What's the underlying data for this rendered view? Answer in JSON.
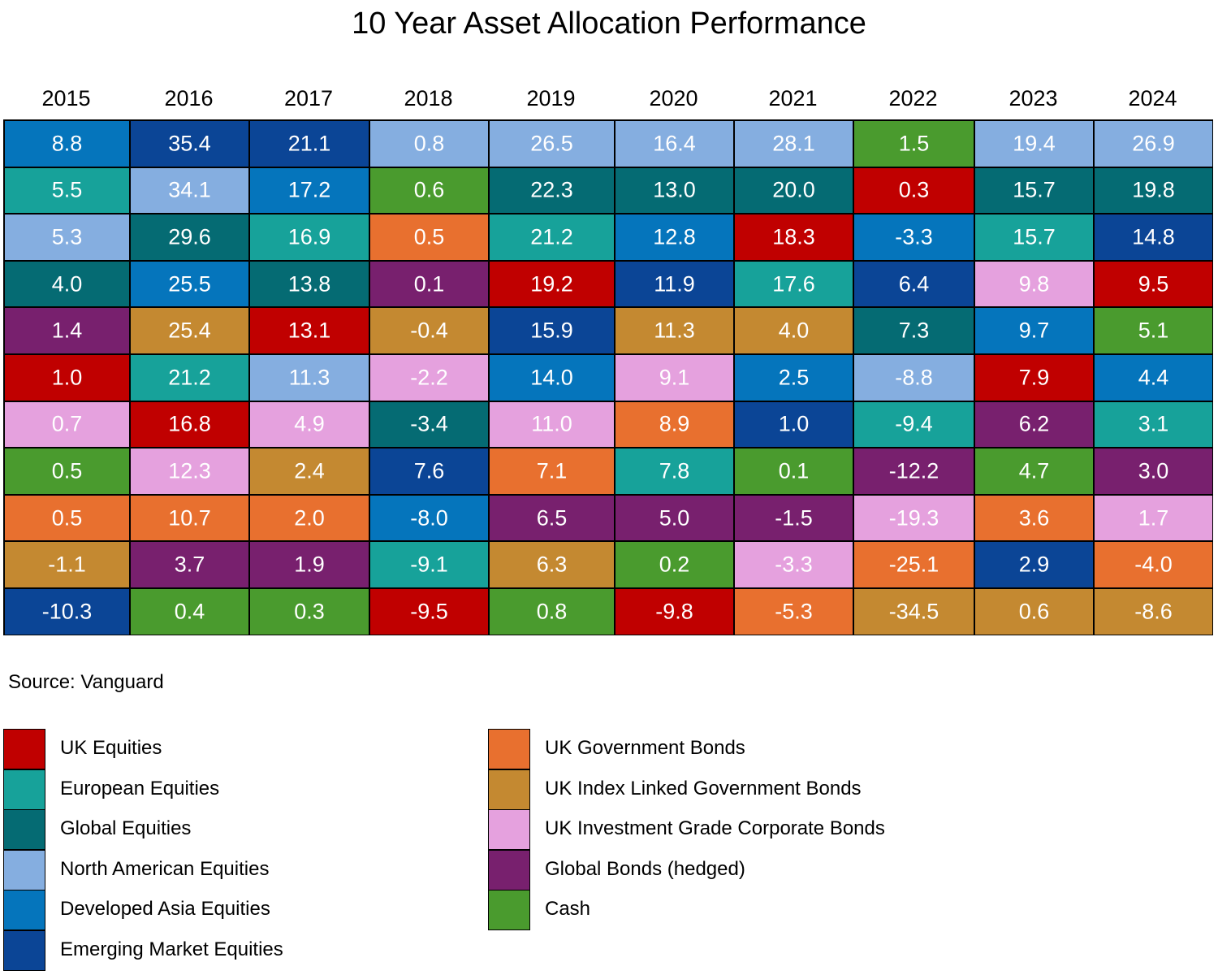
{
  "chart_data": {
    "type": "table",
    "title": "10 Year Asset Allocation Performance",
    "years": [
      "2015",
      "2016",
      "2017",
      "2018",
      "2019",
      "2020",
      "2021",
      "2022",
      "2023",
      "2024"
    ],
    "columns": [
      [
        {
          "value": "8.8",
          "category": "Developed Asia Equities"
        },
        {
          "value": "5.5",
          "category": "European Equities"
        },
        {
          "value": "5.3",
          "category": "North American Equities"
        },
        {
          "value": "4.0",
          "category": "Global Equities"
        },
        {
          "value": "1.4",
          "category": "Global Bonds (hedged)"
        },
        {
          "value": "1.0",
          "category": "UK Equities"
        },
        {
          "value": "0.7",
          "category": "UK Investment Grade Corporate Bonds"
        },
        {
          "value": "0.5",
          "category": "Cash"
        },
        {
          "value": "0.5",
          "category": "UK Government Bonds"
        },
        {
          "value": "-1.1",
          "category": "UK Index Linked Government Bonds"
        },
        {
          "value": "-10.3",
          "category": "Emerging Market Equities"
        }
      ],
      [
        {
          "value": "35.4",
          "category": "Emerging Market Equities"
        },
        {
          "value": "34.1",
          "category": "North American Equities"
        },
        {
          "value": "29.6",
          "category": "Global Equities"
        },
        {
          "value": "25.5",
          "category": "Developed Asia Equities"
        },
        {
          "value": "25.4",
          "category": "UK Index Linked Government Bonds"
        },
        {
          "value": "21.2",
          "category": "European Equities"
        },
        {
          "value": "16.8",
          "category": "UK Equities"
        },
        {
          "value": "12.3",
          "category": "UK Investment Grade Corporate Bonds"
        },
        {
          "value": "10.7",
          "category": "UK Government Bonds"
        },
        {
          "value": "3.7",
          "category": "Global Bonds (hedged)"
        },
        {
          "value": "0.4",
          "category": "Cash"
        }
      ],
      [
        {
          "value": "21.1",
          "category": "Emerging Market Equities"
        },
        {
          "value": "17.2",
          "category": "Developed Asia Equities"
        },
        {
          "value": "16.9",
          "category": "European Equities"
        },
        {
          "value": "13.8",
          "category": "Global Equities"
        },
        {
          "value": "13.1",
          "category": "UK Equities"
        },
        {
          "value": "11.3",
          "category": "North American Equities"
        },
        {
          "value": "4.9",
          "category": "UK Investment Grade Corporate Bonds"
        },
        {
          "value": "2.4",
          "category": "UK Index Linked Government Bonds"
        },
        {
          "value": "2.0",
          "category": "UK Government Bonds"
        },
        {
          "value": "1.9",
          "category": "Global Bonds (hedged)"
        },
        {
          "value": "0.3",
          "category": "Cash"
        }
      ],
      [
        {
          "value": "0.8",
          "category": "North American Equities"
        },
        {
          "value": "0.6",
          "category": "Cash"
        },
        {
          "value": "0.5",
          "category": "UK Government Bonds"
        },
        {
          "value": "0.1",
          "category": "Global Bonds (hedged)"
        },
        {
          "value": "-0.4",
          "category": "UK Index Linked Government Bonds"
        },
        {
          "value": "-2.2",
          "category": "UK Investment Grade Corporate Bonds"
        },
        {
          "value": "-3.4",
          "category": "Global Equities"
        },
        {
          "value": "7.6",
          "category": "Emerging Market Equities"
        },
        {
          "value": "-8.0",
          "category": "Developed Asia Equities"
        },
        {
          "value": "-9.1",
          "category": "European Equities"
        },
        {
          "value": "-9.5",
          "category": "UK Equities"
        }
      ],
      [
        {
          "value": "26.5",
          "category": "North American Equities"
        },
        {
          "value": "22.3",
          "category": "Global Equities"
        },
        {
          "value": "21.2",
          "category": "European Equities"
        },
        {
          "value": "19.2",
          "category": "UK Equities"
        },
        {
          "value": "15.9",
          "category": "Emerging Market Equities"
        },
        {
          "value": "14.0",
          "category": "Developed Asia Equities"
        },
        {
          "value": "11.0",
          "category": "UK Investment Grade Corporate Bonds"
        },
        {
          "value": "7.1",
          "category": "UK Government Bonds"
        },
        {
          "value": "6.5",
          "category": "Global Bonds (hedged)"
        },
        {
          "value": "6.3",
          "category": "UK Index Linked Government Bonds"
        },
        {
          "value": "0.8",
          "category": "Cash"
        }
      ],
      [
        {
          "value": "16.4",
          "category": "North American Equities"
        },
        {
          "value": "13.0",
          "category": "Global Equities"
        },
        {
          "value": "12.8",
          "category": "Developed Asia Equities"
        },
        {
          "value": "11.9",
          "category": "Emerging Market Equities"
        },
        {
          "value": "11.3",
          "category": "UK Index Linked Government Bonds"
        },
        {
          "value": "9.1",
          "category": "UK Investment Grade Corporate Bonds"
        },
        {
          "value": "8.9",
          "category": "UK Government Bonds"
        },
        {
          "value": "7.8",
          "category": "European Equities"
        },
        {
          "value": "5.0",
          "category": "Global Bonds (hedged)"
        },
        {
          "value": "0.2",
          "category": "Cash"
        },
        {
          "value": "-9.8",
          "category": "UK Equities"
        }
      ],
      [
        {
          "value": "28.1",
          "category": "North American Equities"
        },
        {
          "value": "20.0",
          "category": "Global Equities"
        },
        {
          "value": "18.3",
          "category": "UK Equities"
        },
        {
          "value": "17.6",
          "category": "European Equities"
        },
        {
          "value": "4.0",
          "category": "UK Index Linked Government Bonds"
        },
        {
          "value": "2.5",
          "category": "Developed Asia Equities"
        },
        {
          "value": "1.0",
          "category": "Emerging Market Equities"
        },
        {
          "value": "0.1",
          "category": "Cash"
        },
        {
          "value": "-1.5",
          "category": "Global Bonds (hedged)"
        },
        {
          "value": "-3.3",
          "category": "UK Investment Grade Corporate Bonds"
        },
        {
          "value": "-5.3",
          "category": "UK Government Bonds"
        }
      ],
      [
        {
          "value": "1.5",
          "category": "Cash"
        },
        {
          "value": "0.3",
          "category": "UK Equities"
        },
        {
          "value": "-3.3",
          "category": "Developed Asia Equities"
        },
        {
          "value": "6.4",
          "category": "Emerging Market Equities"
        },
        {
          "value": "7.3",
          "category": "Global Equities"
        },
        {
          "value": "-8.8",
          "category": "North American Equities"
        },
        {
          "value": "-9.4",
          "category": "European Equities"
        },
        {
          "value": "-12.2",
          "category": "Global Bonds (hedged)"
        },
        {
          "value": "-19.3",
          "category": "UK Investment Grade Corporate Bonds"
        },
        {
          "value": "-25.1",
          "category": "UK Government Bonds"
        },
        {
          "value": "-34.5",
          "category": "UK Index Linked Government Bonds"
        }
      ],
      [
        {
          "value": "19.4",
          "category": "North American Equities"
        },
        {
          "value": "15.7",
          "category": "Global Equities"
        },
        {
          "value": "15.7",
          "category": "European Equities"
        },
        {
          "value": "9.8",
          "category": "UK Investment Grade Corporate Bonds"
        },
        {
          "value": "9.7",
          "category": "Developed Asia Equities"
        },
        {
          "value": "7.9",
          "category": "UK Equities"
        },
        {
          "value": "6.2",
          "category": "Global Bonds (hedged)"
        },
        {
          "value": "4.7",
          "category": "Cash"
        },
        {
          "value": "3.6",
          "category": "UK Government Bonds"
        },
        {
          "value": "2.9",
          "category": "Emerging Market Equities"
        },
        {
          "value": "0.6",
          "category": "UK Index Linked Government Bonds"
        }
      ],
      [
        {
          "value": "26.9",
          "category": "North American Equities"
        },
        {
          "value": "19.8",
          "category": "Global Equities"
        },
        {
          "value": "14.8",
          "category": "Emerging Market Equities"
        },
        {
          "value": "9.5",
          "category": "UK Equities"
        },
        {
          "value": "5.1",
          "category": "Cash"
        },
        {
          "value": "4.4",
          "category": "Developed Asia Equities"
        },
        {
          "value": "3.1",
          "category": "European Equities"
        },
        {
          "value": "3.0",
          "category": "Global Bonds (hedged)"
        },
        {
          "value": "1.7",
          "category": "UK Investment Grade Corporate Bonds"
        },
        {
          "value": "-4.0",
          "category": "UK Government Bonds"
        },
        {
          "value": "-8.6",
          "category": "UK Index Linked Government Bonds"
        }
      ]
    ],
    "legend": [
      {
        "name": "UK Equities",
        "color": "#c00000"
      },
      {
        "name": "European Equities",
        "color": "#17a29a"
      },
      {
        "name": "Global Equities",
        "color": "#056b73"
      },
      {
        "name": "North American Equities",
        "color": "#85aee0"
      },
      {
        "name": "Developed Asia Equities",
        "color": "#0575bc"
      },
      {
        "name": "Emerging Market Equities",
        "color": "#0b4596"
      },
      {
        "name": "UK Government Bonds",
        "color": "#e8702f"
      },
      {
        "name": "UK Index Linked Government Bonds",
        "color": "#c48931"
      },
      {
        "name": "UK Investment Grade Corporate Bonds",
        "color": "#e5a1de"
      },
      {
        "name": "Global Bonds (hedged)",
        "color": "#78206e"
      },
      {
        "name": "Cash",
        "color": "#4a9b2e"
      }
    ]
  },
  "source": "Source: Vanguard"
}
